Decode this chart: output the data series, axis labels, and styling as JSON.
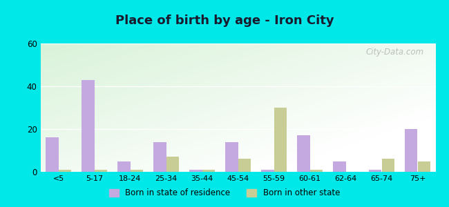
{
  "title": "Place of birth by age - Iron City",
  "categories": [
    "<5",
    "5-17",
    "18-24",
    "25-34",
    "35-44",
    "45-54",
    "55-59",
    "60-61",
    "62-64",
    "65-74",
    "75+"
  ],
  "born_in_state": [
    16,
    43,
    5,
    14,
    1,
    14,
    1,
    17,
    5,
    1,
    20
  ],
  "born_other_state": [
    1,
    1,
    1,
    7,
    1,
    6,
    30,
    1,
    0,
    6,
    5
  ],
  "color_state": "#c4a8e0",
  "color_other": "#c8cd96",
  "ylim": [
    0,
    60
  ],
  "yticks": [
    0,
    20,
    40,
    60
  ],
  "outer_background": "#00e8e8",
  "legend_label_state": "Born in state of residence",
  "legend_label_other": "Born in other state",
  "bar_width": 0.35
}
